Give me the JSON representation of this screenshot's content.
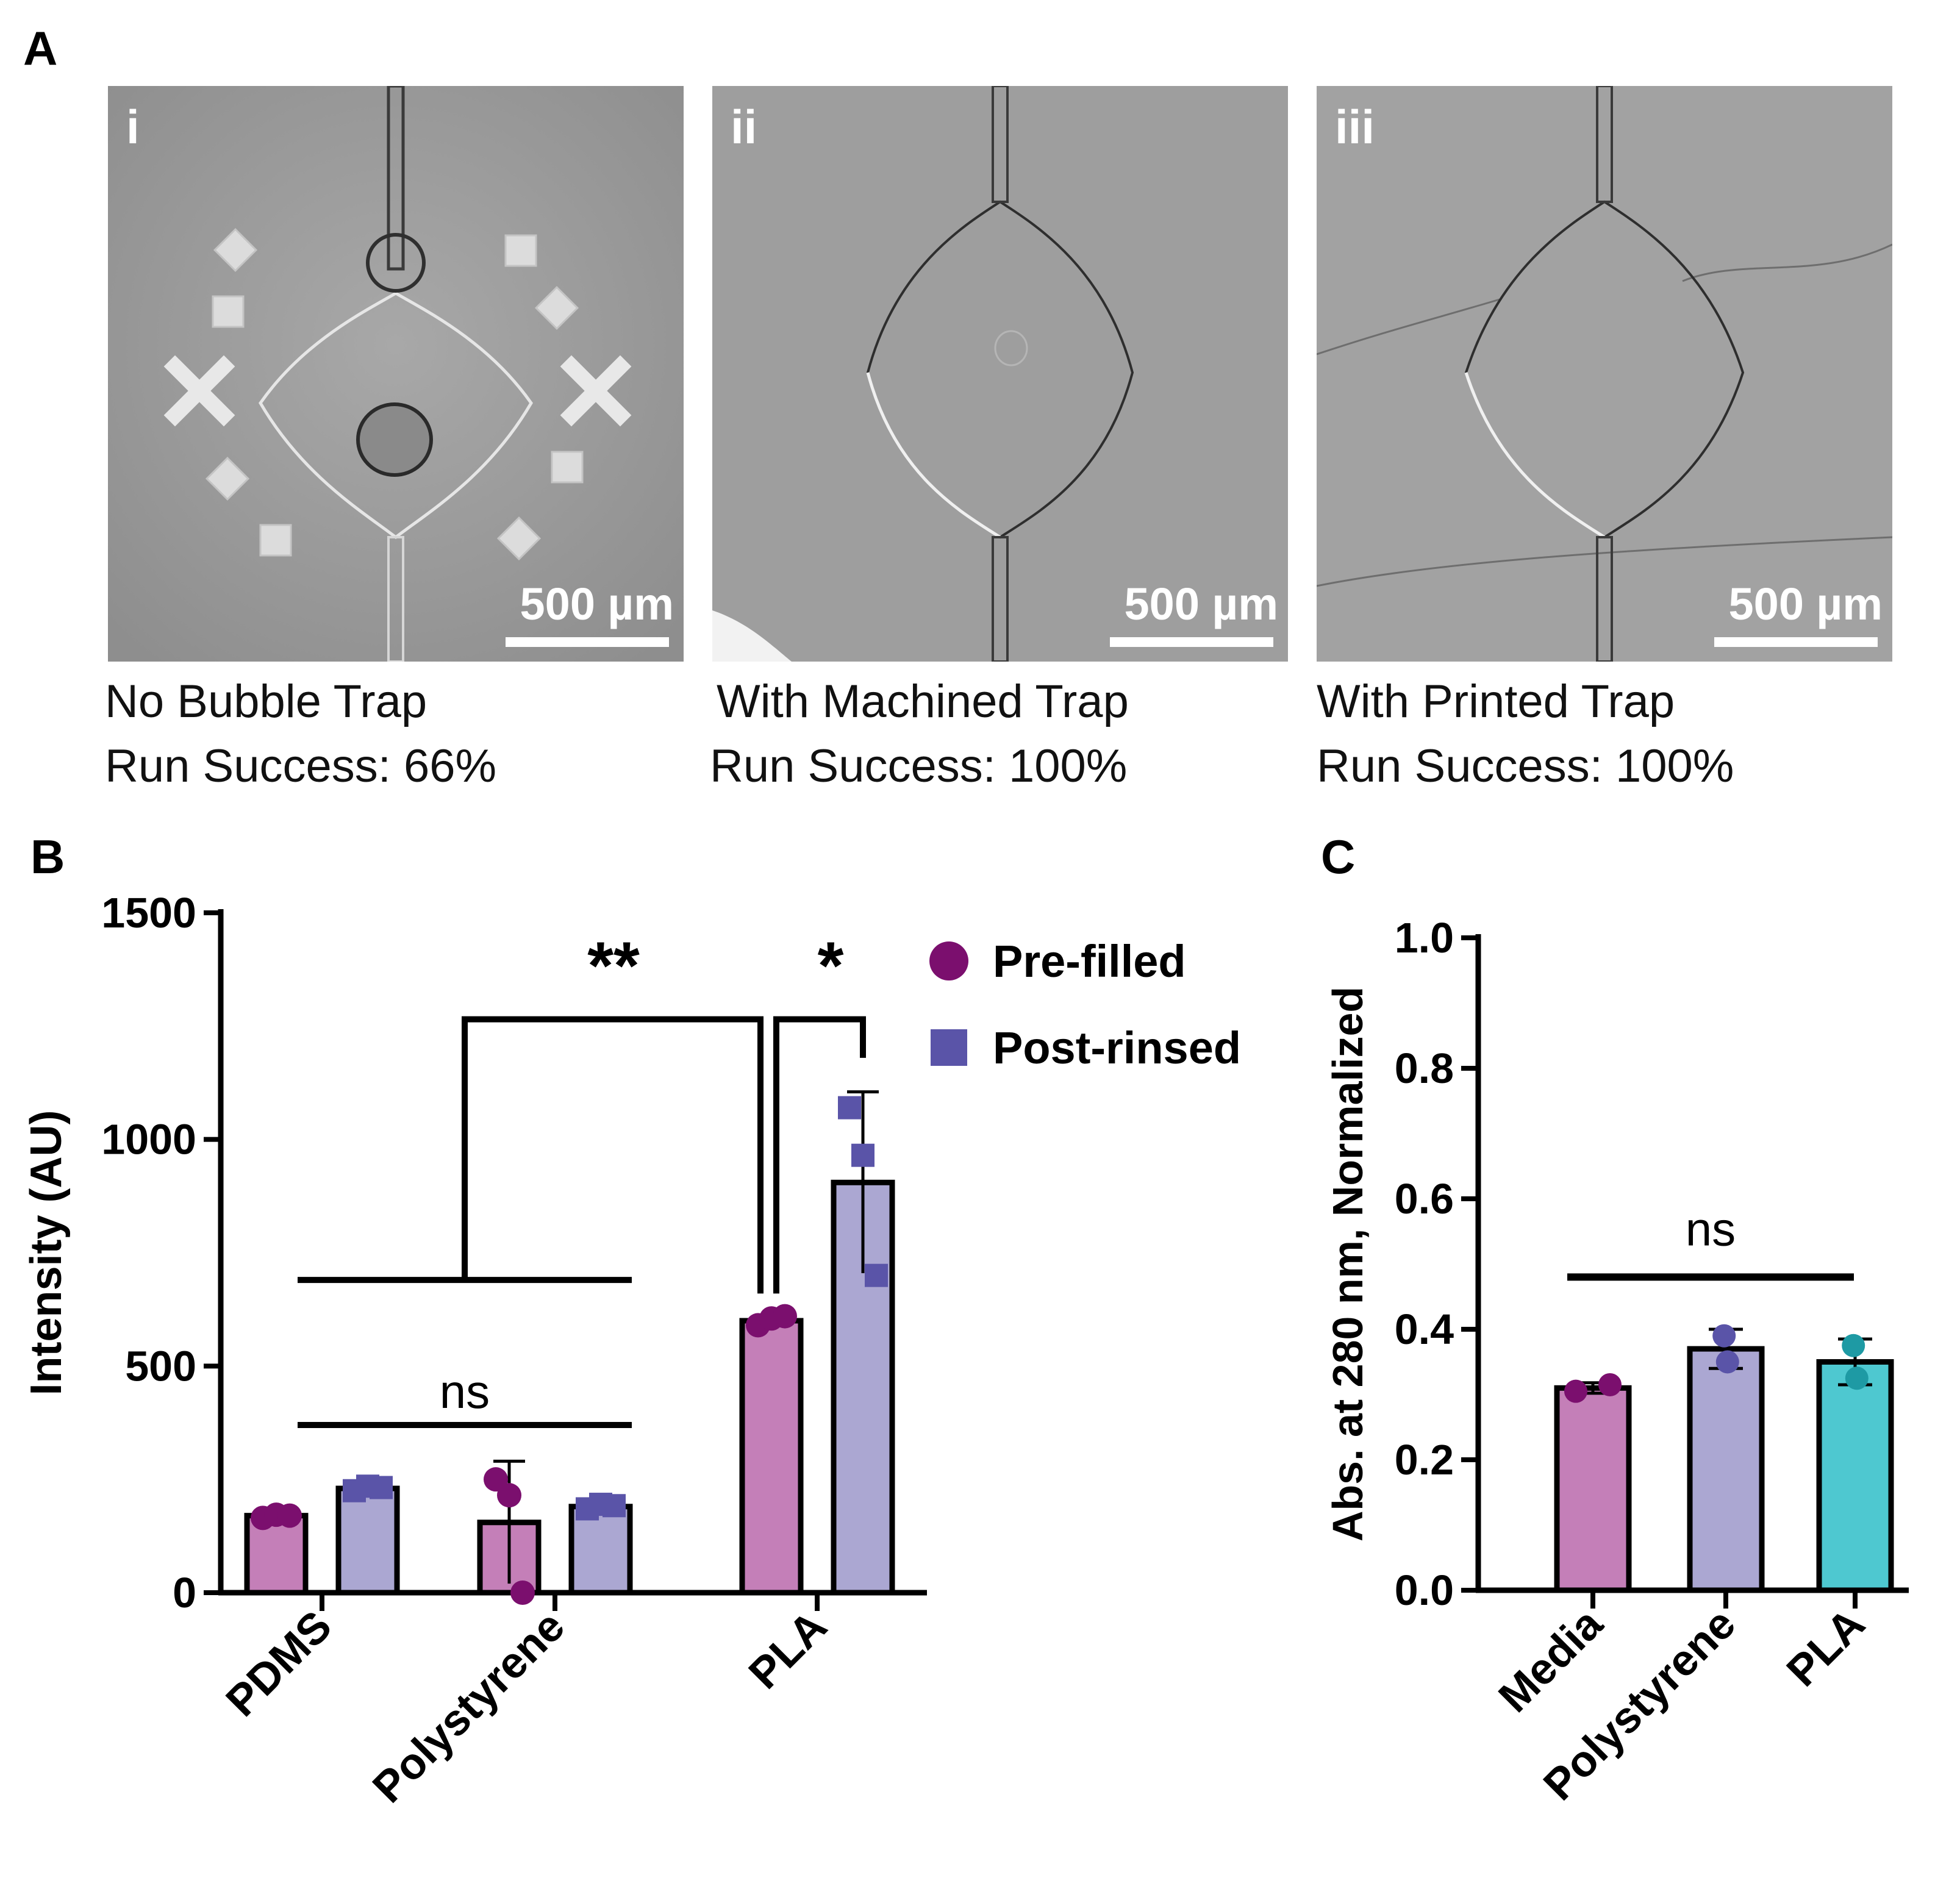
{
  "figure": {
    "panel_a_label": "A",
    "panel_b_label": "B",
    "panel_c_label": "C"
  },
  "panel_a": {
    "images": [
      {
        "numeral": "i",
        "scale_label": "500 µm",
        "caption_line1": "No Bubble Trap",
        "caption_line2": "Run Success: 66%"
      },
      {
        "numeral": "ii",
        "scale_label": "500 µm",
        "caption_line1": "With Machined Trap",
        "caption_line2": "Run Success: 100%"
      },
      {
        "numeral": "iii",
        "scale_label": "500 µm",
        "caption_line1": "With Printed Trap",
        "caption_line2": "Run Success: 100%"
      }
    ]
  },
  "chart_data": [
    {
      "id": "B",
      "type": "bar",
      "title": "",
      "xlabel": "",
      "ylabel": "Intensity (AU)",
      "ylim": [
        0,
        1500
      ],
      "yticks": [
        0,
        500,
        1000,
        1500
      ],
      "categories": [
        "PDMS",
        "Polystyrene",
        "PLA"
      ],
      "series": [
        {
          "name": "Pre-filled",
          "marker": "circle",
          "color": "#c47fb8",
          "point_color": "#7b0f6e",
          "values": [
            170,
            155,
            600
          ],
          "errors": [
            8,
            135,
            10
          ],
          "points": [
            [
              165,
              172,
              170
            ],
            [
              250,
              215,
              0
            ],
            [
              590,
              605,
              610
            ]
          ]
        },
        {
          "name": "Post-rinsed",
          "marker": "square",
          "color": "#aba7d2",
          "point_color": "#5a54a8",
          "values": [
            230,
            190,
            905
          ],
          "errors": [
            10,
            10,
            200
          ],
          "points": [
            [
              225,
              235,
              232
            ],
            [
              185,
              195,
              192
            ],
            [
              1070,
              965,
              700
            ]
          ]
        }
      ],
      "legend": {
        "position": "top-right",
        "entries": [
          "Pre-filled",
          "Post-rinsed"
        ]
      },
      "annotations": [
        {
          "text": "ns",
          "groups": [
            "PDMS",
            "Polystyrene"
          ],
          "series": "Pre-filled",
          "y": 370
        },
        {
          "text": "**",
          "groups": [
            "PDMS",
            "Polystyrene"
          ],
          "target": "PLA Pre-filled",
          "y": 1265
        },
        {
          "text": "*",
          "groups": [
            "PLA Pre-filled",
            "PLA Post-rinsed"
          ],
          "y": 1265
        }
      ]
    },
    {
      "id": "C",
      "type": "bar",
      "title": "",
      "xlabel": "",
      "ylabel": "Abs. at 280 nm, Normalized",
      "ylim": [
        0,
        1.0
      ],
      "yticks": [
        0.0,
        0.2,
        0.4,
        0.6,
        0.8,
        1.0
      ],
      "yticklabels": [
        "0.0",
        "0.2",
        "0.4",
        "0.6",
        "0.8",
        "1.0"
      ],
      "categories": [
        "Media",
        "Polystyrene",
        "PLA"
      ],
      "values": [
        0.31,
        0.37,
        0.35
      ],
      "errors": [
        0.008,
        0.03,
        0.035
      ],
      "colors": [
        "#c47fb8",
        "#aba7d2",
        "#4ec8d0"
      ],
      "point_colors": [
        "#7b0f6e",
        "#5a54a8",
        "#1e9aa4"
      ],
      "points": [
        [
          0.305,
          0.315
        ],
        [
          0.39,
          0.35
        ],
        [
          0.375,
          0.325
        ]
      ],
      "annotations": [
        {
          "text": "ns",
          "groups": [
            "Media",
            "PLA"
          ],
          "y": 0.48
        }
      ]
    }
  ]
}
